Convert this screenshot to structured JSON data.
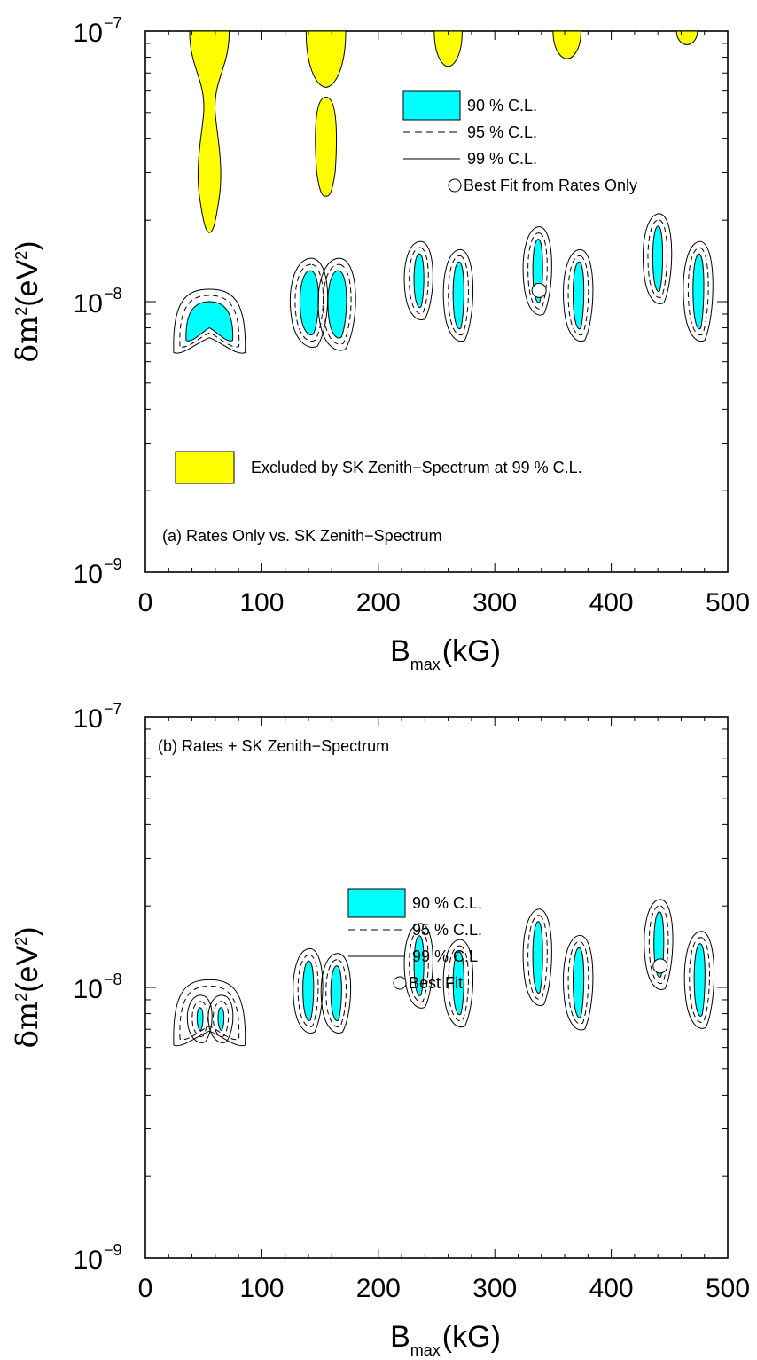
{
  "chart_data": [
    {
      "id": "a",
      "type": "contour",
      "annotation": "(a) Rates Only vs. SK Zenith−Spectrum",
      "xlabel": "B",
      "xlabel_sub": "max",
      "xlabel_unit": "(kG)",
      "ylabel": "δm",
      "ylabel_sup": "2",
      "ylabel_unit": "(eV",
      "ylabel_unit_sup": "2",
      "ylabel_close": ")",
      "xlim": [
        0,
        500
      ],
      "ylim": [
        1e-09,
        1e-07
      ],
      "yscale": "log",
      "xticks": [
        "0",
        "100",
        "200",
        "300",
        "400",
        "500"
      ],
      "ytick_base": "10",
      "ytick_exps": [
        "−9",
        "−8",
        "−7"
      ],
      "legend": [
        {
          "kind": "fill",
          "label": "90 % C.L."
        },
        {
          "kind": "dashed",
          "label": "95 % C.L."
        },
        {
          "kind": "solid",
          "label": "99 % C.L."
        },
        {
          "kind": "marker",
          "label": "Best Fit from Rates Only"
        }
      ],
      "excluded_label": "Excluded by SK Zenith−Spectrum at 99 % C.L.",
      "best_fit": {
        "x": 338,
        "y": 1.1e-08
      },
      "regions": [
        {
          "x": 55,
          "yl": 7.2e-09,
          "ym": 8e-09,
          "yh": 1e-08,
          "w": 40,
          "shape": "arch"
        },
        {
          "x": 141,
          "yl": 7.6e-09,
          "ym": 9e-09,
          "yh": 1.3e-08,
          "w": 19,
          "shape": "blob"
        },
        {
          "x": 165,
          "yl": 7.4e-09,
          "ym": 9e-09,
          "yh": 1.3e-08,
          "w": 19,
          "shape": "blob"
        },
        {
          "x": 235,
          "yl": 9.6e-09,
          "ym": 1.2e-08,
          "yh": 1.5e-08,
          "w": 10,
          "shape": "blob"
        },
        {
          "x": 269,
          "yl": 8e-09,
          "ym": 1.1e-08,
          "yh": 1.4e-08,
          "w": 11,
          "shape": "blob"
        },
        {
          "x": 337,
          "yl": 1e-08,
          "ym": 1.3e-08,
          "yh": 1.7e-08,
          "w": 10,
          "shape": "blob"
        },
        {
          "x": 372,
          "yl": 8e-09,
          "ym": 1.1e-08,
          "yh": 1.4e-08,
          "w": 11,
          "shape": "blob"
        },
        {
          "x": 440,
          "yl": 1.1e-08,
          "ym": 1.4e-08,
          "yh": 1.9e-08,
          "w": 10,
          "shape": "blob"
        },
        {
          "x": 475,
          "yl": 8e-09,
          "ym": 1.1e-08,
          "yh": 1.5e-08,
          "w": 11,
          "shape": "blob"
        }
      ],
      "excluded": [
        {
          "x": 55,
          "bot": 1.8e-08,
          "top": 1e-07,
          "w": 34,
          "pinch": 5.2e-08,
          "kind": "teardrop"
        },
        {
          "x": 155,
          "bot": 6.2e-08,
          "top": 1e-07,
          "w": 34,
          "kind": "bowl"
        },
        {
          "x": 155,
          "bot": 2.45e-08,
          "top": 5.7e-08,
          "w": 20,
          "kind": "ellipse"
        },
        {
          "x": 260,
          "bot": 7.4e-08,
          "top": 1e-07,
          "w": 24,
          "kind": "bowl"
        },
        {
          "x": 362,
          "bot": 7.9e-08,
          "top": 1e-07,
          "w": 24,
          "kind": "bowl"
        },
        {
          "x": 465,
          "bot": 8.9e-08,
          "top": 1e-07,
          "w": 18,
          "kind": "bowl"
        }
      ]
    },
    {
      "id": "b",
      "type": "contour",
      "annotation": "(b) Rates + SK Zenith−Spectrum",
      "xlabel": "B",
      "xlabel_sub": "max",
      "xlabel_unit": "(kG)",
      "ylabel": "δm",
      "ylabel_sup": "2",
      "ylabel_unit": "(eV",
      "ylabel_unit_sup": "2",
      "ylabel_close": ")",
      "xlim": [
        0,
        500
      ],
      "ylim": [
        1e-09,
        1e-07
      ],
      "yscale": "log",
      "xticks": [
        "0",
        "100",
        "200",
        "300",
        "400",
        "500"
      ],
      "ytick_base": "10",
      "ytick_exps": [
        "−9",
        "−8",
        "−7"
      ],
      "legend": [
        {
          "kind": "fill",
          "label": "90 % C.L."
        },
        {
          "kind": "dashed",
          "label": "95 % C.L."
        },
        {
          "kind": "solid",
          "label": "99 % C.L"
        },
        {
          "kind": "marker",
          "label": "Best Fit"
        }
      ],
      "best_fit": {
        "x": 442,
        "y": 1.2e-08
      },
      "regions": [
        {
          "x": 47,
          "yl": 7e-09,
          "ym": 7.6e-09,
          "yh": 8.4e-09,
          "w": 6,
          "shape": "blob"
        },
        {
          "x": 65,
          "yl": 7e-09,
          "ym": 7.6e-09,
          "yh": 8.4e-09,
          "w": 6,
          "shape": "blob"
        },
        {
          "x": 55,
          "yl": 6.8e-09,
          "ym": 7.5e-09,
          "yh": 9.6e-09,
          "w": 40,
          "shape": "arch-outline"
        },
        {
          "x": 140,
          "yl": 7.6e-09,
          "ym": 9.8e-09,
          "yh": 1.25e-08,
          "w": 11,
          "shape": "blob"
        },
        {
          "x": 164,
          "yl": 7.6e-09,
          "ym": 9.5e-09,
          "yh": 1.2e-08,
          "w": 11,
          "shape": "blob"
        },
        {
          "x": 235,
          "yl": 9.4e-09,
          "ym": 1.15e-08,
          "yh": 1.55e-08,
          "w": 10,
          "shape": "blob"
        },
        {
          "x": 269,
          "yl": 8e-09,
          "ym": 1.05e-08,
          "yh": 1.35e-08,
          "w": 11,
          "shape": "blob"
        },
        {
          "x": 337,
          "yl": 9.6e-09,
          "ym": 1.25e-08,
          "yh": 1.75e-08,
          "w": 10,
          "shape": "blob"
        },
        {
          "x": 372,
          "yl": 7.8e-09,
          "ym": 1.05e-08,
          "yh": 1.4e-08,
          "w": 11,
          "shape": "blob"
        },
        {
          "x": 441,
          "yl": 1.1e-08,
          "ym": 1.4e-08,
          "yh": 1.9e-08,
          "w": 10,
          "shape": "blob"
        },
        {
          "x": 476,
          "yl": 7.9e-09,
          "ym": 1.05e-08,
          "yh": 1.45e-08,
          "w": 11,
          "shape": "blob"
        }
      ]
    }
  ],
  "colors": {
    "cl90_fill": "#00ffff",
    "excluded_fill": "#ffff00",
    "line": "#000000",
    "best_fit_fill": "#ffffff"
  }
}
